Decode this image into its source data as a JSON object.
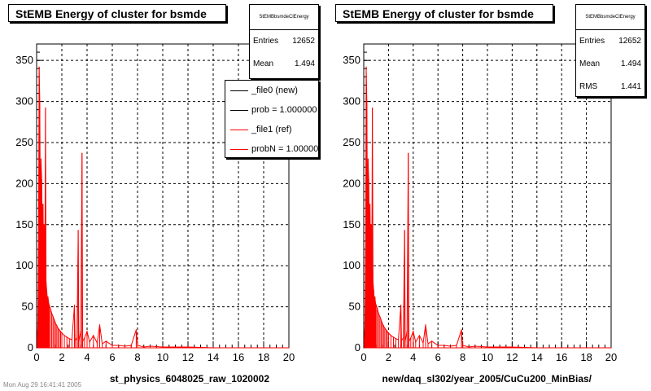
{
  "chart_data": [
    {
      "type": "line",
      "title": "StEMB Energy of cluster for bsmde",
      "xlabel": "st_physics_6048025_raw_1020002",
      "ylabel": "",
      "xlim": [
        0,
        20
      ],
      "ylim": [
        0,
        370
      ],
      "xticks": [
        "0",
        "2",
        "4",
        "6",
        "8",
        "10",
        "12",
        "14",
        "16",
        "18",
        "20"
      ],
      "yticks": [
        "0",
        "50",
        "100",
        "150",
        "200",
        "250",
        "300",
        "350"
      ],
      "grid": true,
      "stats": {
        "name": "StEMBbsmdeClEnergy",
        "entries_label": "Entries",
        "entries": "12652",
        "mean_label": "Mean",
        "mean": "1.494"
      },
      "legend": {
        "placement": "top-right",
        "entries": [
          {
            "label": "_file0 (new)",
            "color": "#000000"
          },
          {
            "label": "prob = 1.000000",
            "color": "#000000"
          },
          {
            "label": "_file1 (ref)",
            "color": "#ff0000"
          },
          {
            "label": "probN = 1.000000",
            "color": "#ff0000"
          }
        ]
      },
      "series": [
        {
          "color": "#ff0000",
          "points": [
            [
              0.05,
              10
            ],
            [
              0.1,
              30
            ],
            [
              0.15,
              120
            ],
            [
              0.2,
              342
            ],
            [
              0.25,
              300
            ],
            [
              0.3,
              150
            ],
            [
              0.35,
              230
            ],
            [
              0.4,
              205
            ],
            [
              0.45,
              140
            ],
            [
              0.5,
              175
            ],
            [
              0.55,
              120
            ],
            [
              0.6,
              150
            ],
            [
              0.65,
              95
            ],
            [
              0.7,
              292
            ],
            [
              0.75,
              80
            ],
            [
              0.8,
              70
            ],
            [
              0.85,
              60
            ],
            [
              0.9,
              62
            ],
            [
              0.95,
              55
            ],
            [
              1.0,
              52
            ],
            [
              1.1,
              48
            ],
            [
              1.2,
              42
            ],
            [
              1.3,
              38
            ],
            [
              1.4,
              34
            ],
            [
              1.5,
              30
            ],
            [
              1.6,
              27
            ],
            [
              1.7,
              24
            ],
            [
              1.8,
              22
            ],
            [
              1.9,
              20
            ],
            [
              2.0,
              18
            ],
            [
              2.2,
              15
            ],
            [
              2.4,
              13
            ],
            [
              2.6,
              11
            ],
            [
              2.8,
              10
            ],
            [
              3.0,
              52
            ],
            [
              3.05,
              9
            ],
            [
              3.2,
              12
            ],
            [
              3.3,
              143
            ],
            [
              3.35,
              8
            ],
            [
              3.5,
              20
            ],
            [
              3.6,
              237
            ],
            [
              3.65,
              8
            ],
            [
              3.8,
              12
            ],
            [
              4.0,
              20
            ],
            [
              4.2,
              7
            ],
            [
              4.5,
              15
            ],
            [
              4.8,
              6
            ],
            [
              5.0,
              28
            ],
            [
              5.2,
              5
            ],
            [
              5.5,
              8
            ],
            [
              6.0,
              3
            ],
            [
              6.5,
              3
            ],
            [
              7.0,
              2
            ],
            [
              7.5,
              3
            ],
            [
              7.9,
              22
            ],
            [
              8.0,
              3
            ],
            [
              8.5,
              1
            ],
            [
              9.0,
              2
            ],
            [
              10.0,
              1
            ],
            [
              11.0,
              1
            ],
            [
              12.0,
              1
            ],
            [
              14.0,
              0
            ],
            [
              16.0,
              0
            ],
            [
              18.0,
              0
            ],
            [
              20.0,
              0
            ]
          ]
        }
      ]
    },
    {
      "type": "line",
      "title": "StEMB Energy of cluster for bsmde",
      "xlabel": "new/daq_sl302/year_2005/CuCu200_MinBias/",
      "ylabel": "",
      "xlim": [
        0,
        20
      ],
      "ylim": [
        0,
        370
      ],
      "xticks": [
        "0",
        "2",
        "4",
        "6",
        "8",
        "10",
        "12",
        "14",
        "16",
        "18",
        "20"
      ],
      "yticks": [
        "0",
        "50",
        "100",
        "150",
        "200",
        "250",
        "300",
        "350"
      ],
      "grid": true,
      "stats": {
        "name": "StEMBbsmdeClEnergy",
        "entries_label": "Entries",
        "entries": "12652",
        "mean_label": "Mean",
        "mean": "1.494",
        "rms_label": "RMS",
        "rms": "1.441"
      },
      "series": [
        {
          "color": "#ff0000",
          "points": [
            [
              0.05,
              10
            ],
            [
              0.1,
              30
            ],
            [
              0.15,
              120
            ],
            [
              0.2,
              342
            ],
            [
              0.25,
              300
            ],
            [
              0.3,
              150
            ],
            [
              0.35,
              230
            ],
            [
              0.4,
              205
            ],
            [
              0.45,
              140
            ],
            [
              0.5,
              175
            ],
            [
              0.55,
              120
            ],
            [
              0.6,
              150
            ],
            [
              0.65,
              95
            ],
            [
              0.7,
              292
            ],
            [
              0.75,
              80
            ],
            [
              0.8,
              70
            ],
            [
              0.85,
              60
            ],
            [
              0.9,
              62
            ],
            [
              0.95,
              55
            ],
            [
              1.0,
              52
            ],
            [
              1.1,
              48
            ],
            [
              1.2,
              42
            ],
            [
              1.3,
              38
            ],
            [
              1.4,
              34
            ],
            [
              1.5,
              30
            ],
            [
              1.6,
              27
            ],
            [
              1.7,
              24
            ],
            [
              1.8,
              22
            ],
            [
              1.9,
              20
            ],
            [
              2.0,
              18
            ],
            [
              2.2,
              15
            ],
            [
              2.4,
              13
            ],
            [
              2.6,
              11
            ],
            [
              2.8,
              10
            ],
            [
              3.0,
              52
            ],
            [
              3.05,
              9
            ],
            [
              3.2,
              12
            ],
            [
              3.3,
              143
            ],
            [
              3.35,
              8
            ],
            [
              3.5,
              20
            ],
            [
              3.6,
              237
            ],
            [
              3.65,
              8
            ],
            [
              3.8,
              12
            ],
            [
              4.0,
              20
            ],
            [
              4.2,
              7
            ],
            [
              4.5,
              15
            ],
            [
              4.8,
              6
            ],
            [
              5.0,
              28
            ],
            [
              5.2,
              5
            ],
            [
              5.5,
              8
            ],
            [
              6.0,
              3
            ],
            [
              6.5,
              3
            ],
            [
              7.0,
              2
            ],
            [
              7.5,
              3
            ],
            [
              7.9,
              22
            ],
            [
              8.0,
              3
            ],
            [
              8.5,
              1
            ],
            [
              9.0,
              2
            ],
            [
              10.0,
              1
            ],
            [
              11.0,
              1
            ],
            [
              12.0,
              1
            ],
            [
              14.0,
              0
            ],
            [
              16.0,
              0
            ],
            [
              18.0,
              0
            ],
            [
              20.0,
              0
            ]
          ]
        }
      ]
    }
  ],
  "footer": "Mon Aug 29 16:41:41 2005"
}
